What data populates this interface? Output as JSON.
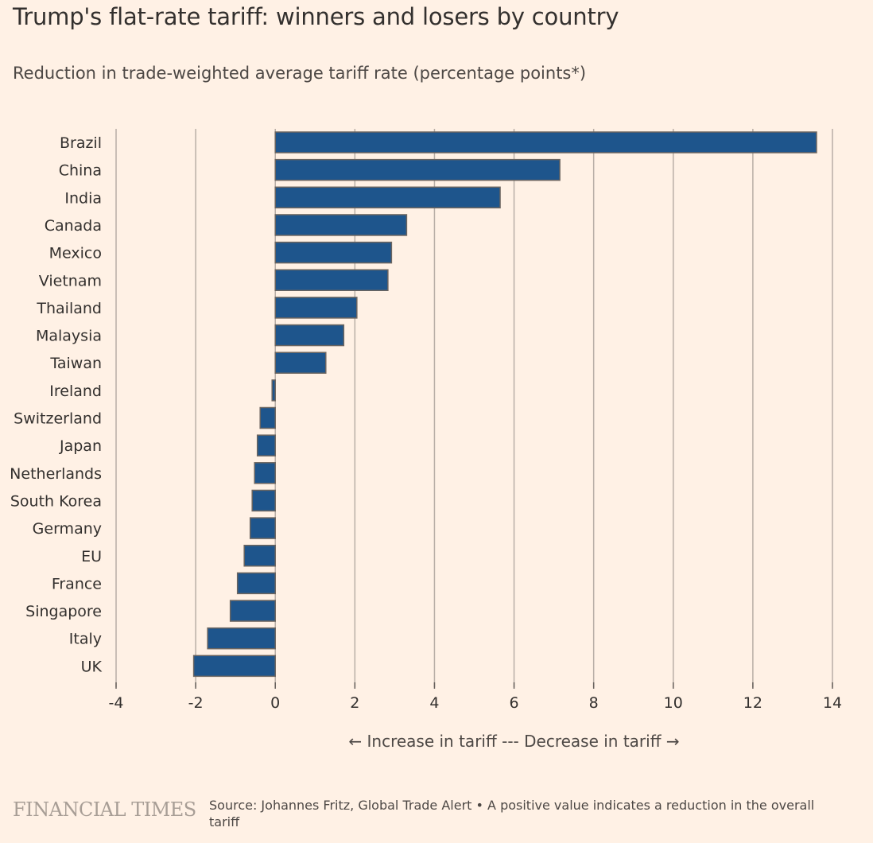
{
  "header": {
    "title": "Trump's flat-rate tariff: winners and losers by country",
    "subtitle": "Reduction in trade-weighted average tariff rate (percentage points*)"
  },
  "footer": {
    "logo_text": "FINANCIAL TIMES",
    "source": "Source: Johannes Fritz, Global Trade Alert • A positive value indicates a reduction in the overall tariff"
  },
  "colors": {
    "background": "#fff1e5",
    "bar_fill": "#1e558c",
    "bar_stroke": "#6b6560",
    "gridline": "#b8aea6",
    "text": "#33302e"
  },
  "chart_data": {
    "type": "bar",
    "orientation": "horizontal",
    "categories": [
      "Brazil",
      "China",
      "India",
      "Canada",
      "Mexico",
      "Vietnam",
      "Thailand",
      "Malaysia",
      "Taiwan",
      "Ireland",
      "Switzerland",
      "Japan",
      "Netherlands",
      "South Korea",
      "Germany",
      "EU",
      "France",
      "Singapore",
      "Italy",
      "UK"
    ],
    "values": [
      13.6,
      7.15,
      5.65,
      3.3,
      2.92,
      2.83,
      2.05,
      1.72,
      1.27,
      -0.08,
      -0.38,
      -0.45,
      -0.52,
      -0.58,
      -0.63,
      -0.78,
      -0.95,
      -1.13,
      -1.7,
      -2.05
    ],
    "xlim": [
      -4,
      14
    ],
    "xticks": [
      -4,
      -2,
      0,
      2,
      4,
      6,
      8,
      10,
      12,
      14
    ],
    "xlabel": "← Increase in tariff --- Decrease in tariff →",
    "grid": true
  }
}
